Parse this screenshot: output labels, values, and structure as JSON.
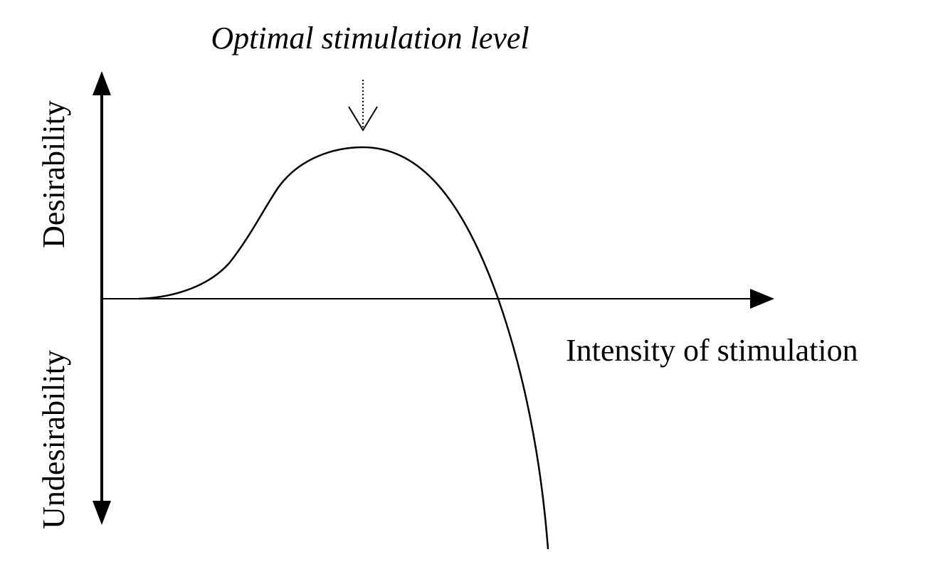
{
  "annotation": "Optimal stimulation level",
  "y_axis": {
    "top_label": "Desirability",
    "bottom_label": "Undesirability"
  },
  "x_axis": {
    "label": "Intensity of stimulation"
  }
}
